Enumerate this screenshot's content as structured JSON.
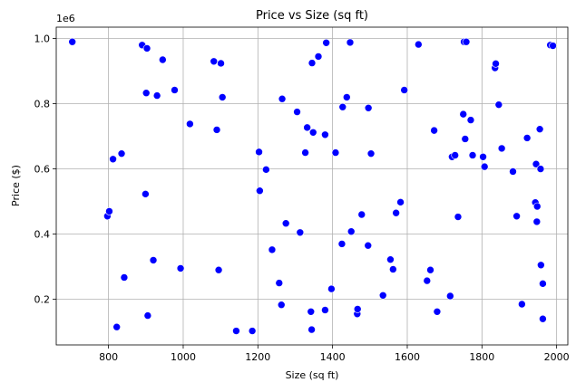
{
  "chart_data": {
    "type": "scatter",
    "title": "Price vs Size (sq ft)",
    "xlabel": "Size (sq ft)",
    "ylabel": "Price ($)",
    "y_offset_label": "1e6",
    "xlim": [
      660,
      2030
    ],
    "ylim": [
      0.06,
      1.035
    ],
    "xticks": [
      800,
      1000,
      1200,
      1400,
      1600,
      1800,
      2000
    ],
    "yticks": [
      0.2,
      0.4,
      0.6,
      0.8,
      1.0
    ],
    "xtick_labels": [
      "800",
      "1000",
      "1200",
      "1400",
      "1600",
      "1800",
      "2000"
    ],
    "ytick_labels": [
      "0.2",
      "0.4",
      "0.6",
      "0.8",
      "1.0"
    ],
    "grid": true,
    "marker_color": "#0000ff",
    "points": [
      [
        703,
        0.99
      ],
      [
        797,
        0.455
      ],
      [
        802,
        0.47
      ],
      [
        812,
        0.63
      ],
      [
        822,
        0.115
      ],
      [
        835,
        0.647
      ],
      [
        842,
        0.267
      ],
      [
        890,
        0.98
      ],
      [
        899,
        0.523
      ],
      [
        901,
        0.833
      ],
      [
        903,
        0.97
      ],
      [
        905,
        0.15
      ],
      [
        920,
        0.32
      ],
      [
        930,
        0.825
      ],
      [
        945,
        0.935
      ],
      [
        977,
        0.842
      ],
      [
        993,
        0.295
      ],
      [
        1018,
        0.738
      ],
      [
        1082,
        0.93
      ],
      [
        1090,
        0.72
      ],
      [
        1095,
        0.29
      ],
      [
        1101,
        0.924
      ],
      [
        1105,
        0.82
      ],
      [
        1142,
        0.103
      ],
      [
        1185,
        0.103
      ],
      [
        1203,
        0.652
      ],
      [
        1205,
        0.533
      ],
      [
        1222,
        0.598
      ],
      [
        1238,
        0.352
      ],
      [
        1257,
        0.25
      ],
      [
        1263,
        0.183
      ],
      [
        1265,
        0.815
      ],
      [
        1275,
        0.433
      ],
      [
        1305,
        0.775
      ],
      [
        1313,
        0.405
      ],
      [
        1327,
        0.65
      ],
      [
        1332,
        0.727
      ],
      [
        1342,
        0.162
      ],
      [
        1344,
        0.107
      ],
      [
        1345,
        0.925
      ],
      [
        1348,
        0.712
      ],
      [
        1362,
        0.945
      ],
      [
        1380,
        0.167
      ],
      [
        1380,
        0.705
      ],
      [
        1383,
        0.987
      ],
      [
        1397,
        0.232
      ],
      [
        1408,
        0.65
      ],
      [
        1425,
        0.37
      ],
      [
        1427,
        0.79
      ],
      [
        1438,
        0.82
      ],
      [
        1447,
        0.988
      ],
      [
        1450,
        0.408
      ],
      [
        1466,
        0.155
      ],
      [
        1467,
        0.17
      ],
      [
        1478,
        0.46
      ],
      [
        1495,
        0.365
      ],
      [
        1496,
        0.787
      ],
      [
        1503,
        0.647
      ],
      [
        1535,
        0.212
      ],
      [
        1555,
        0.322
      ],
      [
        1562,
        0.292
      ],
      [
        1570,
        0.465
      ],
      [
        1582,
        0.498
      ],
      [
        1592,
        0.842
      ],
      [
        1630,
        0.982
      ],
      [
        1653,
        0.257
      ],
      [
        1662,
        0.29
      ],
      [
        1672,
        0.718
      ],
      [
        1680,
        0.162
      ],
      [
        1715,
        0.21
      ],
      [
        1720,
        0.637
      ],
      [
        1728,
        0.642
      ],
      [
        1736,
        0.453
      ],
      [
        1750,
        0.768
      ],
      [
        1752,
        0.99
      ],
      [
        1755,
        0.692
      ],
      [
        1758,
        0.99
      ],
      [
        1770,
        0.75
      ],
      [
        1775,
        0.642
      ],
      [
        1803,
        0.637
      ],
      [
        1807,
        0.607
      ],
      [
        1835,
        0.91
      ],
      [
        1837,
        0.923
      ],
      [
        1845,
        0.797
      ],
      [
        1853,
        0.663
      ],
      [
        1883,
        0.592
      ],
      [
        1893,
        0.455
      ],
      [
        1907,
        0.185
      ],
      [
        1921,
        0.695
      ],
      [
        1943,
        0.497
      ],
      [
        1945,
        0.615
      ],
      [
        1947,
        0.438
      ],
      [
        1948,
        0.485
      ],
      [
        1955,
        0.722
      ],
      [
        1957,
        0.6
      ],
      [
        1958,
        0.305
      ],
      [
        1963,
        0.248
      ],
      [
        1963,
        0.14
      ],
      [
        1983,
        0.98
      ],
      [
        1990,
        0.978
      ]
    ]
  }
}
